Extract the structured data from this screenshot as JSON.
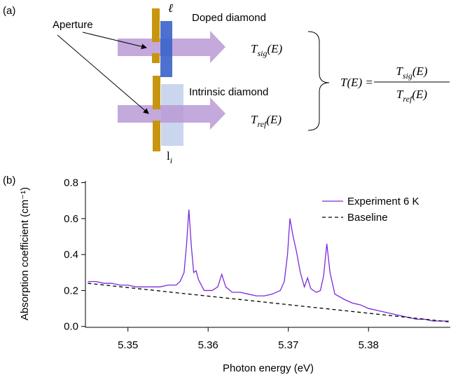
{
  "panel_labels": [
    "(a)",
    "(b)"
  ],
  "diagram": {
    "aperture": "Aperture",
    "thickness_doped": "ℓ",
    "doped": "Doped diamond",
    "intrinsic": "Intrinsic diamond",
    "thickness_intrinsic": {
      "base": "l",
      "sub": "i"
    },
    "t_sig": {
      "base": "T",
      "sub": "sig",
      "arg": "(E)"
    },
    "t_ref": {
      "base": "T",
      "sub": "ref",
      "arg": "(E)"
    },
    "equation_lhs": "T(E) ="
  },
  "chart_data": {
    "type": "line",
    "xlabel": "Photon energy  (eV)",
    "ylabel": "Absorption coefficient (cm⁻¹)",
    "xlim": [
      5.3447,
      5.3902
    ],
    "ylim": [
      -0.005,
      0.81
    ],
    "xticks": [
      5.35,
      5.36,
      5.37,
      5.38
    ],
    "yticks": [
      {
        "value": 0,
        "label": "0.0"
      },
      0.2,
      0.4,
      0.6,
      0.8
    ],
    "legend": "upper right",
    "series": [
      {
        "name": "Experiment 6 K",
        "color": "#7a2cd9",
        "linestyle": "solid",
        "x": [
          5.345,
          5.346,
          5.347,
          5.348,
          5.349,
          5.35,
          5.351,
          5.352,
          5.353,
          5.354,
          5.355,
          5.356,
          5.3565,
          5.357,
          5.3573,
          5.3576,
          5.3579,
          5.3582,
          5.3585,
          5.3588,
          5.3595,
          5.3605,
          5.3612,
          5.3617,
          5.3622,
          5.363,
          5.364,
          5.365,
          5.366,
          5.367,
          5.368,
          5.369,
          5.3695,
          5.3699,
          5.3702,
          5.3706,
          5.371,
          5.3715,
          5.372,
          5.3724,
          5.3728,
          5.3735,
          5.374,
          5.3744,
          5.3748,
          5.3752,
          5.3758,
          5.377,
          5.378,
          5.379,
          5.38,
          5.381,
          5.382,
          5.383,
          5.384,
          5.385,
          5.386,
          5.387,
          5.388,
          5.39
        ],
        "values": [
          0.25,
          0.25,
          0.24,
          0.24,
          0.23,
          0.23,
          0.22,
          0.22,
          0.22,
          0.22,
          0.23,
          0.23,
          0.25,
          0.3,
          0.45,
          0.65,
          0.45,
          0.3,
          0.31,
          0.26,
          0.2,
          0.2,
          0.22,
          0.29,
          0.22,
          0.19,
          0.19,
          0.18,
          0.17,
          0.17,
          0.18,
          0.2,
          0.25,
          0.4,
          0.6,
          0.5,
          0.42,
          0.3,
          0.22,
          0.27,
          0.21,
          0.19,
          0.2,
          0.28,
          0.46,
          0.3,
          0.18,
          0.15,
          0.13,
          0.12,
          0.1,
          0.09,
          0.08,
          0.07,
          0.06,
          0.05,
          0.04,
          0.04,
          0.03,
          0.03
        ]
      },
      {
        "name": "Baseline",
        "color": "#000000",
        "linestyle": "dashed",
        "x": [
          5.345,
          5.3902
        ],
        "values": [
          0.24,
          0.025
        ]
      }
    ]
  }
}
